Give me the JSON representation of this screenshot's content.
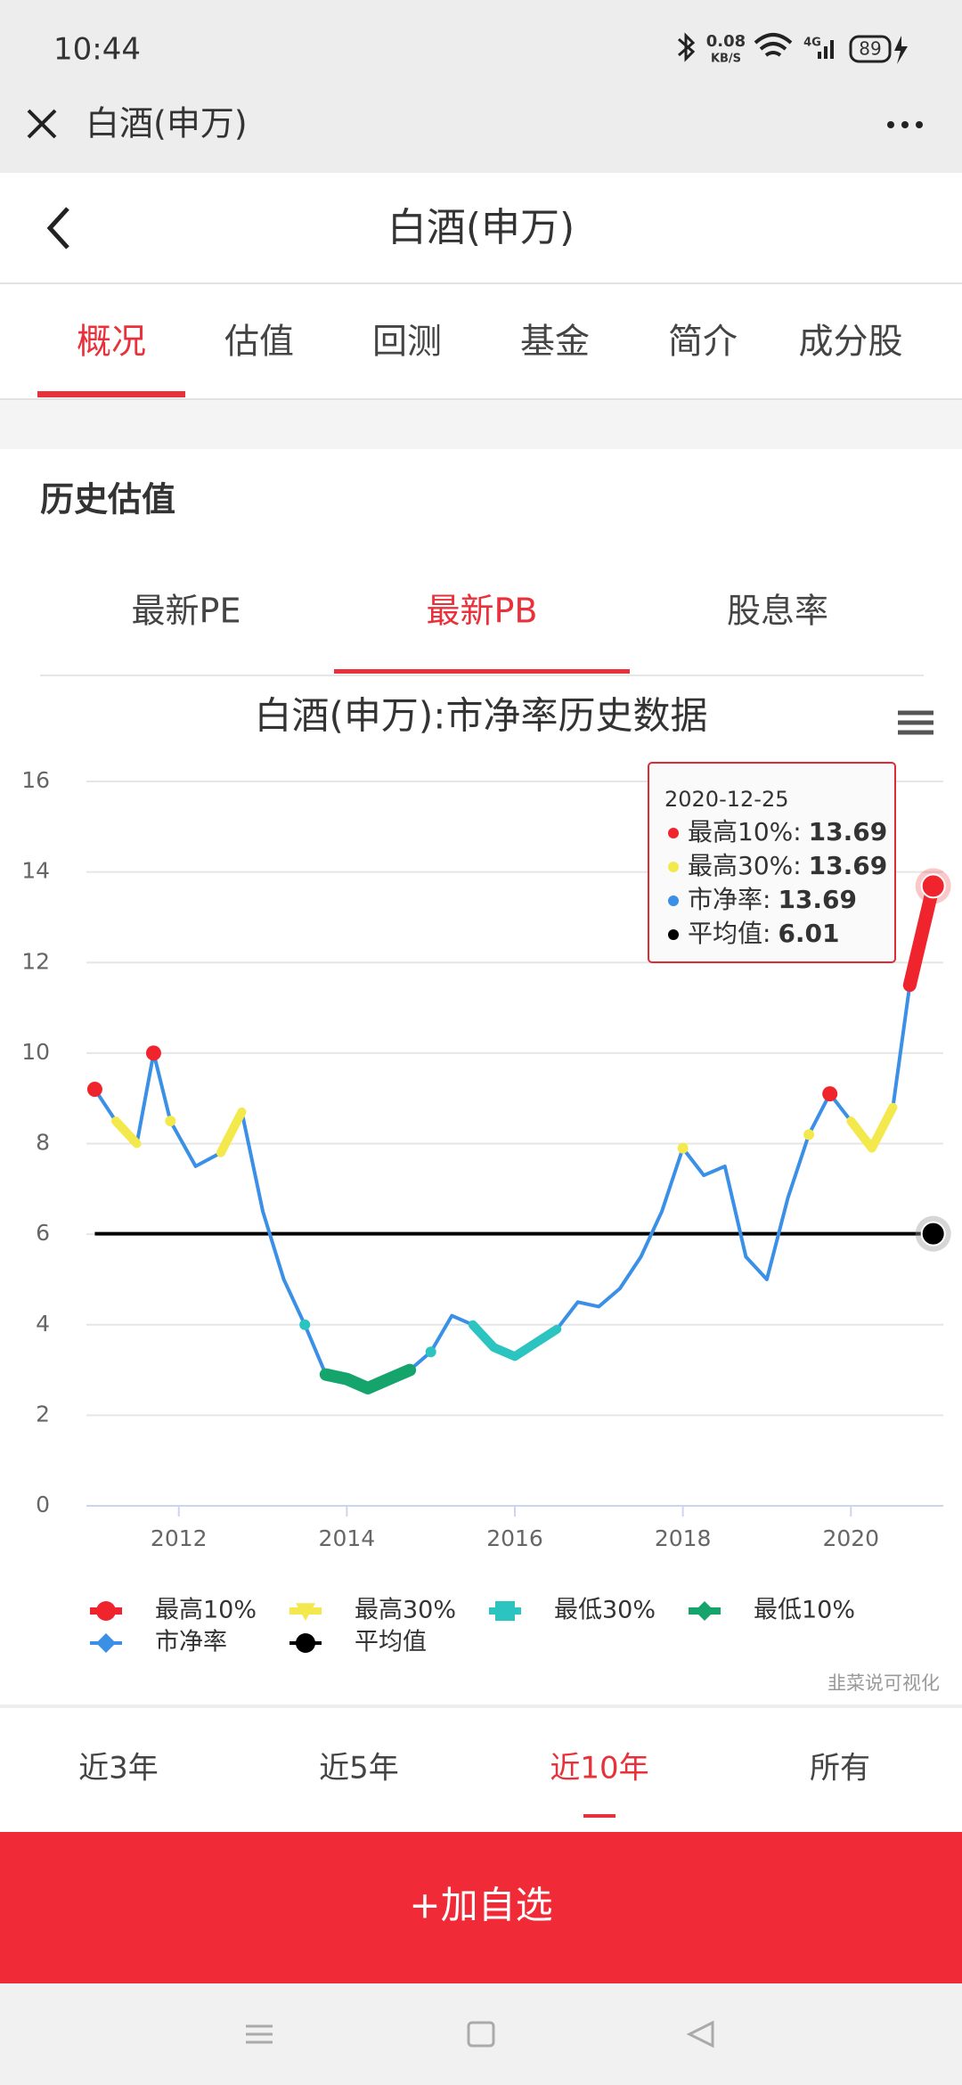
{
  "status_bar": {
    "time": "10:44",
    "net_speed": "0.08",
    "net_unit": "KB/S",
    "network": "4G",
    "battery": "89"
  },
  "wechat_bar": {
    "title": "白酒(申万)"
  },
  "header": {
    "title": "白酒(申万)"
  },
  "tabs": {
    "items": [
      "概况",
      "估值",
      "回测",
      "基金",
      "简介",
      "成分股"
    ],
    "active": 0
  },
  "section": {
    "title": "历史估值"
  },
  "subtabs": {
    "items": [
      "最新PE",
      "最新PB",
      "股息率"
    ],
    "active": 1
  },
  "chart_data": {
    "type": "line",
    "title": "白酒(申万):市净率历史数据",
    "x": [
      2011.0,
      2011.25,
      2011.5,
      2011.7,
      2011.9,
      2012.2,
      2012.5,
      2012.75,
      2013.0,
      2013.25,
      2013.5,
      2013.75,
      2014.0,
      2014.25,
      2014.5,
      2014.75,
      2015.0,
      2015.25,
      2015.5,
      2015.75,
      2016.0,
      2016.25,
      2016.5,
      2016.75,
      2017.0,
      2017.25,
      2017.5,
      2017.75,
      2018.0,
      2018.25,
      2018.5,
      2018.75,
      2019.0,
      2019.25,
      2019.5,
      2019.75,
      2020.0,
      2020.25,
      2020.5,
      2020.7,
      2020.98
    ],
    "series": [
      {
        "name": "最高10%",
        "color": "#f0242c",
        "marker": "circle",
        "width": 15,
        "values": [
          9.2,
          null,
          null,
          10.0,
          null,
          null,
          null,
          null,
          null,
          null,
          null,
          null,
          null,
          null,
          null,
          null,
          null,
          null,
          null,
          null,
          null,
          null,
          null,
          null,
          null,
          null,
          null,
          null,
          null,
          null,
          null,
          null,
          null,
          null,
          null,
          9.1,
          null,
          null,
          null,
          11.5,
          13.69
        ]
      },
      {
        "name": "最高30%",
        "color": "#f3e94c",
        "marker": "triangle",
        "width": 10,
        "values": [
          null,
          8.5,
          8.0,
          null,
          8.5,
          null,
          7.8,
          8.7,
          null,
          null,
          null,
          null,
          null,
          null,
          null,
          null,
          null,
          null,
          null,
          null,
          null,
          null,
          null,
          null,
          null,
          null,
          null,
          null,
          7.9,
          null,
          null,
          null,
          null,
          null,
          8.2,
          null,
          8.5,
          7.9,
          8.8,
          null,
          null
        ]
      },
      {
        "name": "最低30%",
        "color": "#2cc4c0",
        "marker": "square",
        "width": 10,
        "values": [
          null,
          null,
          null,
          null,
          null,
          null,
          null,
          null,
          null,
          null,
          4.0,
          null,
          null,
          null,
          null,
          null,
          3.4,
          null,
          4.0,
          3.5,
          3.3,
          3.6,
          3.9,
          null,
          null,
          null,
          null,
          null,
          null,
          null,
          null,
          null,
          null,
          null,
          null,
          null,
          null,
          null,
          null,
          null,
          null
        ]
      },
      {
        "name": "最低10%",
        "color": "#15a46c",
        "marker": "diamond",
        "width": 14,
        "values": [
          null,
          null,
          null,
          null,
          null,
          null,
          null,
          null,
          null,
          null,
          null,
          2.9,
          2.8,
          2.6,
          2.8,
          3.0,
          null,
          null,
          null,
          null,
          null,
          null,
          null,
          null,
          null,
          null,
          null,
          null,
          null,
          null,
          null,
          null,
          null,
          null,
          null,
          null,
          null,
          null,
          null,
          null,
          null
        ]
      },
      {
        "name": "市净率",
        "color": "#3a8fe6",
        "marker": "diamond",
        "width": 4,
        "values": [
          9.2,
          8.5,
          8.0,
          10.0,
          8.5,
          7.5,
          7.8,
          8.7,
          6.5,
          5.0,
          4.0,
          2.9,
          2.8,
          2.6,
          2.8,
          3.0,
          3.4,
          4.2,
          4.0,
          3.5,
          3.3,
          3.6,
          3.9,
          4.5,
          4.4,
          4.8,
          5.5,
          6.5,
          7.9,
          7.3,
          7.5,
          5.5,
          5.0,
          6.8,
          8.2,
          9.1,
          8.5,
          7.9,
          8.8,
          11.5,
          13.69
        ]
      },
      {
        "name": "平均值",
        "color": "#000000",
        "marker": "circle",
        "width": 4,
        "value": 6.01
      }
    ],
    "xlim": [
      2010.9,
      2021.1
    ],
    "ylim": [
      0,
      16
    ],
    "xticks": [
      2012,
      2014,
      2016,
      2018,
      2020
    ],
    "yticks": [
      0,
      2,
      4,
      6,
      8,
      10,
      12,
      14,
      16
    ],
    "grid": true,
    "tooltip": {
      "date": "2020-12-25",
      "rows": [
        {
          "label": "最高10%:",
          "value": 13.69,
          "color": "#f0242c"
        },
        {
          "label": "最高30%:",
          "value": 13.69,
          "color": "#f3e94c"
        },
        {
          "label": "市净率:",
          "value": 13.69,
          "color": "#3a8fe6"
        },
        {
          "label": "平均值:",
          "value": 6.01,
          "color": "#000000"
        }
      ]
    }
  },
  "watermark": "韭菜说可视化",
  "ranges": {
    "items": [
      "近3年",
      "近5年",
      "近10年",
      "所有"
    ],
    "active": 2
  },
  "button": "+加自选"
}
